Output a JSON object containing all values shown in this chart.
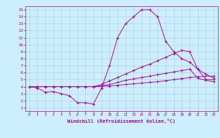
{
  "xlabel": "Windchill (Refroidissement éolien,°C)",
  "ylabel": "",
  "xlim": [
    -0.5,
    23.5
  ],
  "ylim": [
    0.5,
    15.5
  ],
  "xticks": [
    0,
    1,
    2,
    3,
    4,
    5,
    6,
    7,
    8,
    9,
    10,
    11,
    12,
    13,
    14,
    15,
    16,
    17,
    18,
    19,
    20,
    21,
    22,
    23
  ],
  "yticks": [
    1,
    2,
    3,
    4,
    5,
    6,
    7,
    8,
    9,
    10,
    11,
    12,
    13,
    14,
    15
  ],
  "background_color": "#cceeff",
  "grid_color": "#aacccc",
  "line_color": "#aa00aa",
  "lines": [
    {
      "x": [
        0,
        1,
        2,
        3,
        4,
        5,
        6,
        7,
        8,
        9,
        10,
        11,
        12,
        13,
        14,
        15,
        16,
        17,
        18,
        19,
        20,
        21,
        22,
        23
      ],
      "y": [
        4.0,
        3.8,
        3.2,
        3.3,
        3.0,
        2.7,
        1.7,
        1.7,
        1.5,
        3.8,
        7.0,
        11.0,
        13.0,
        14.0,
        15.0,
        15.0,
        14.0,
        10.5,
        9.0,
        8.0,
        7.5,
        6.5,
        5.0,
        5.0
      ]
    },
    {
      "x": [
        0,
        1,
        2,
        3,
        4,
        5,
        6,
        7,
        8,
        9,
        10,
        11,
        12,
        13,
        14,
        15,
        16,
        17,
        18,
        19,
        20,
        21,
        22,
        23
      ],
      "y": [
        4.0,
        4.0,
        4.0,
        4.0,
        4.0,
        4.0,
        4.0,
        4.0,
        4.0,
        4.3,
        4.8,
        5.3,
        5.8,
        6.3,
        6.8,
        7.2,
        7.7,
        8.2,
        8.7,
        9.2,
        9.0,
        6.5,
        5.8,
        5.2
      ]
    },
    {
      "x": [
        0,
        1,
        2,
        3,
        4,
        5,
        6,
        7,
        8,
        9,
        10,
        11,
        12,
        13,
        14,
        15,
        16,
        17,
        18,
        19,
        20,
        21,
        22,
        23
      ],
      "y": [
        4.0,
        4.0,
        4.0,
        4.0,
        4.0,
        4.0,
        4.0,
        4.0,
        4.0,
        4.1,
        4.3,
        4.6,
        4.9,
        5.1,
        5.3,
        5.5,
        5.7,
        5.9,
        6.1,
        6.3,
        6.5,
        5.2,
        4.9,
        4.7
      ]
    },
    {
      "x": [
        0,
        1,
        2,
        3,
        4,
        5,
        6,
        7,
        8,
        9,
        10,
        11,
        12,
        13,
        14,
        15,
        16,
        17,
        18,
        19,
        20,
        21,
        22,
        23
      ],
      "y": [
        4.0,
        4.0,
        4.0,
        4.0,
        4.0,
        4.0,
        4.0,
        4.0,
        4.0,
        4.05,
        4.1,
        4.2,
        4.3,
        4.4,
        4.5,
        4.6,
        4.7,
        4.85,
        5.0,
        5.15,
        5.3,
        5.4,
        5.5,
        5.5
      ]
    }
  ]
}
